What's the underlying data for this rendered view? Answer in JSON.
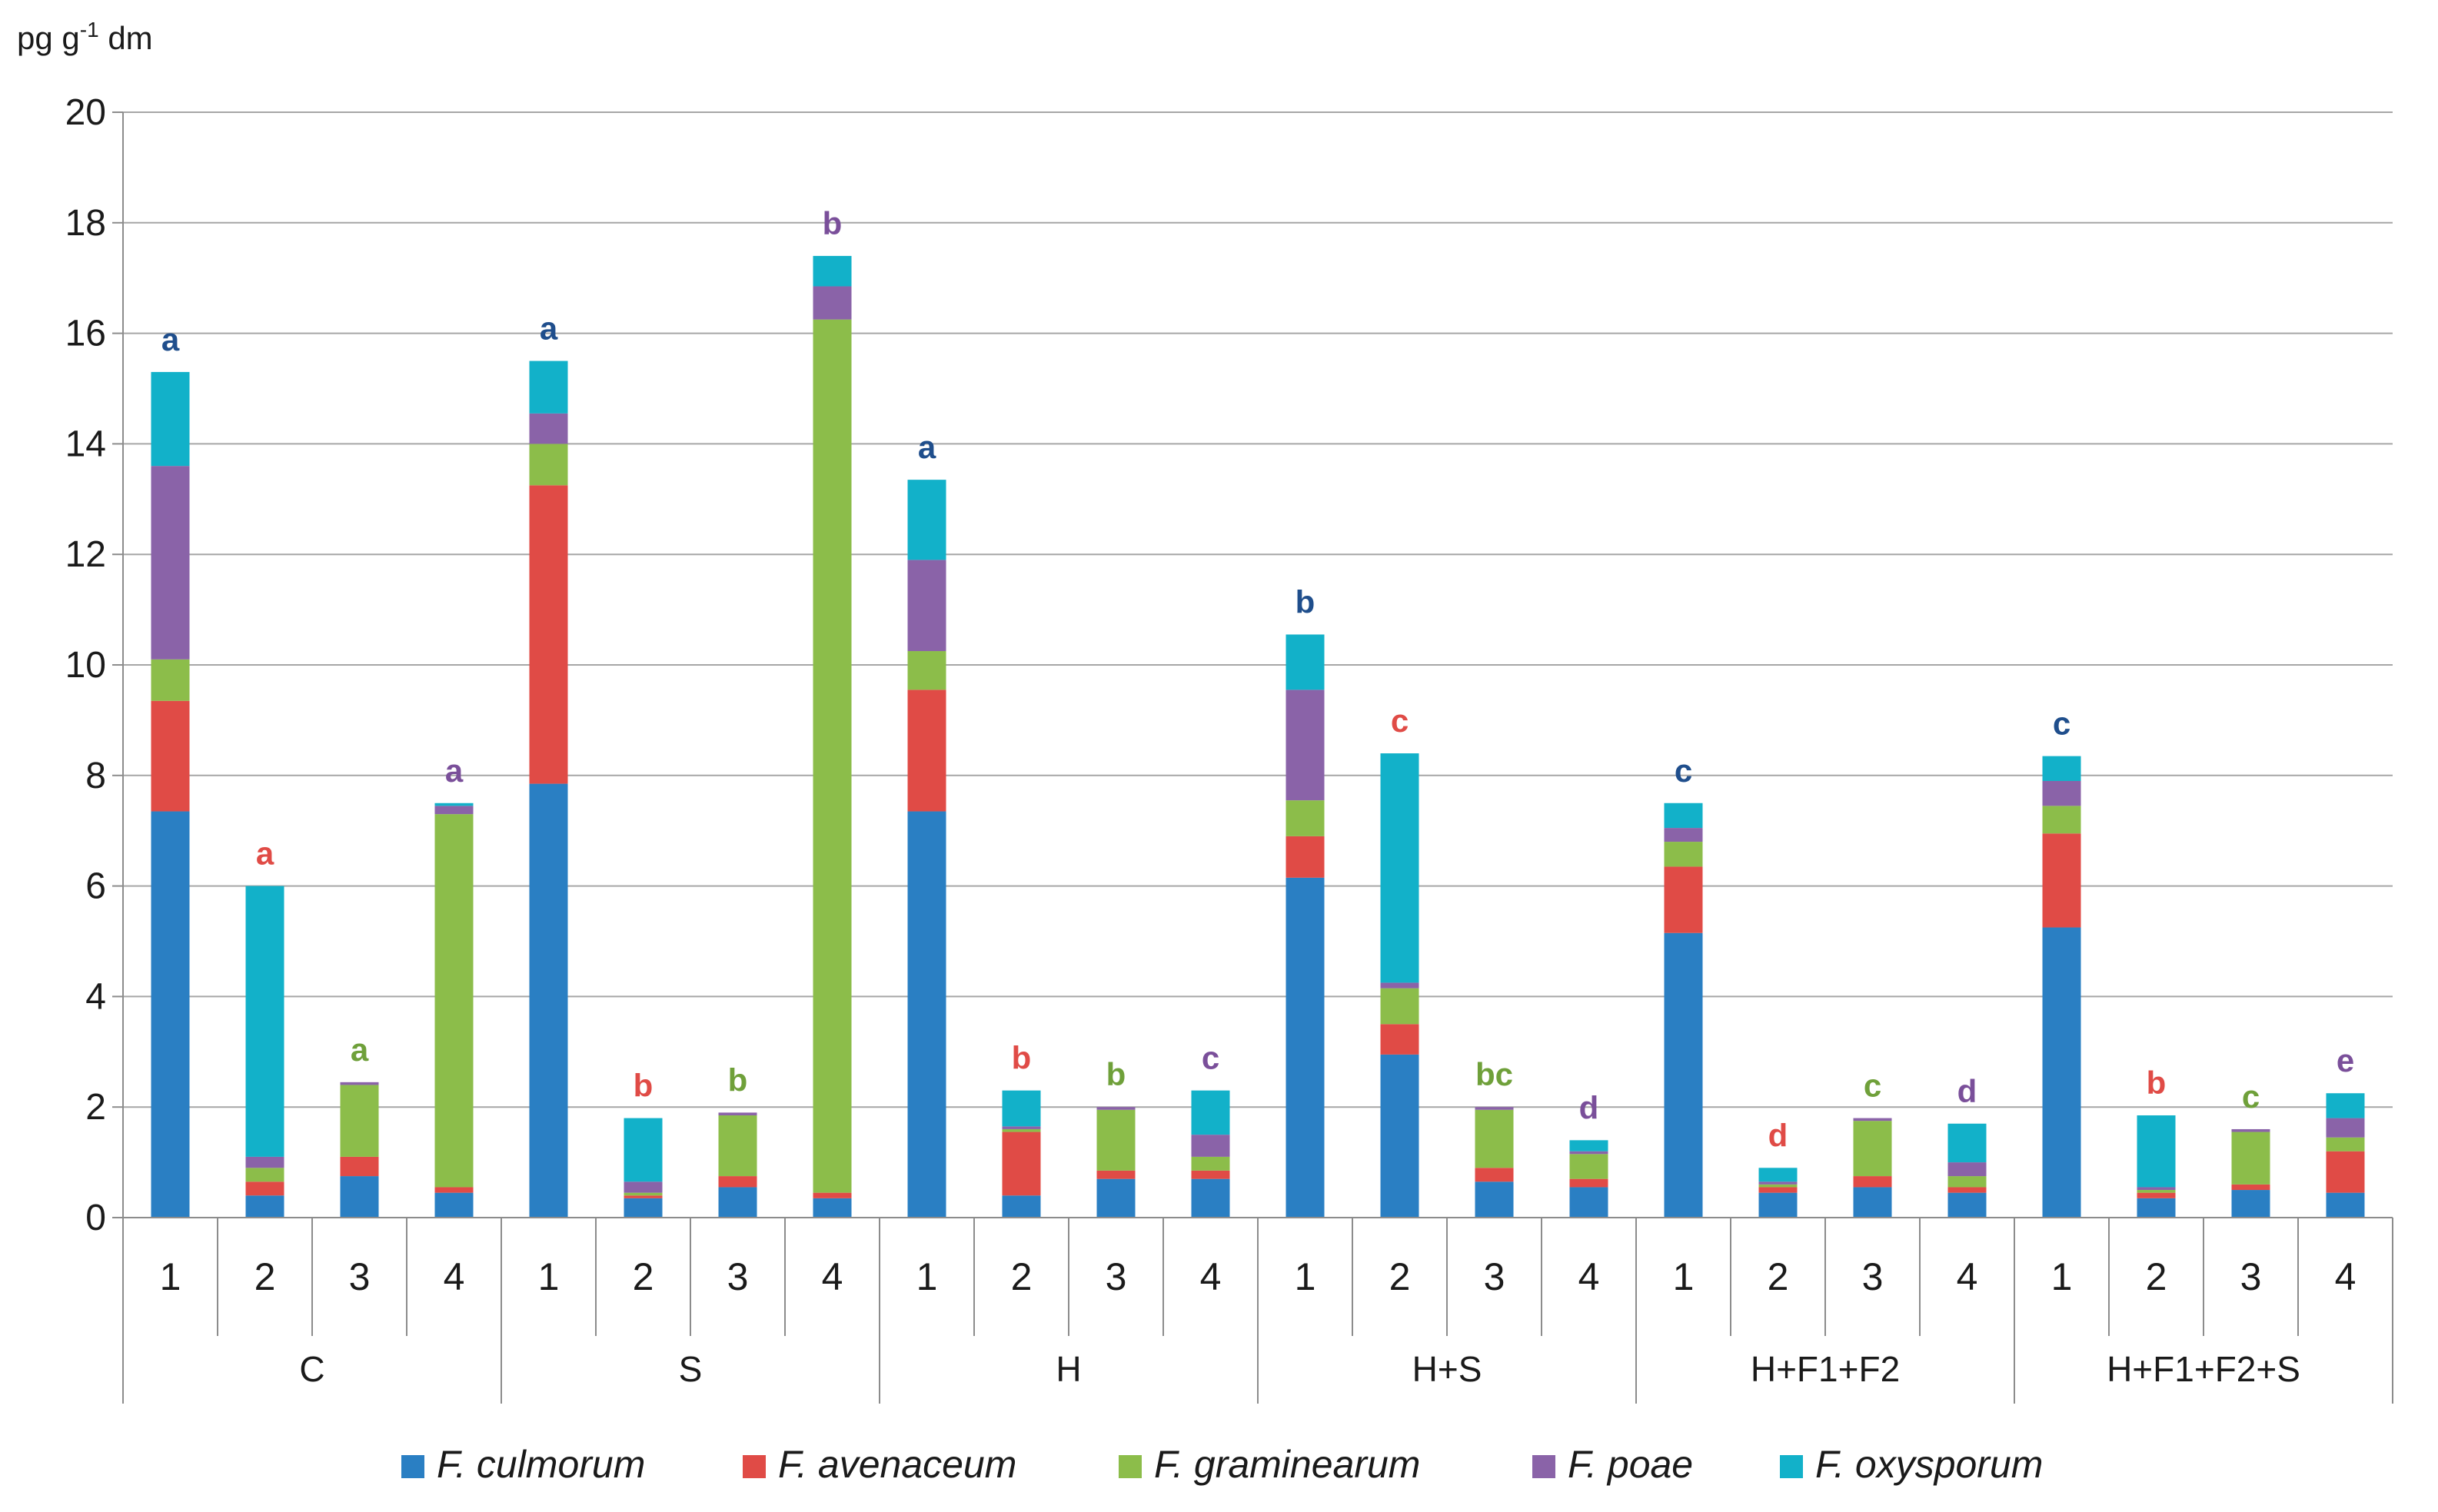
{
  "chart_data": {
    "type": "bar",
    "stacked": true,
    "ylabel": "pg g",
    "ylabel_sup": "-1",
    "ylabel_suffix": " dm",
    "ylim": [
      0,
      20
    ],
    "yticks": [
      "0",
      "2",
      "4",
      "6",
      "8",
      "10",
      "12",
      "14",
      "16",
      "18",
      "20"
    ],
    "grid": true,
    "legend_position": "bottom",
    "groups": [
      {
        "label": "C",
        "categories": [
          "1",
          "2",
          "3",
          "4"
        ]
      },
      {
        "label": "S",
        "categories": [
          "1",
          "2",
          "3",
          "4"
        ]
      },
      {
        "label": "H",
        "categories": [
          "1",
          "2",
          "3",
          "4"
        ]
      },
      {
        "label": "H+S",
        "categories": [
          "1",
          "2",
          "3",
          "4"
        ]
      },
      {
        "label": "H+F1+F2",
        "categories": [
          "1",
          "2",
          "3",
          "4"
        ]
      },
      {
        "label": "H+F1+F2+S",
        "categories": [
          "1",
          "2",
          "3",
          "4"
        ]
      }
    ],
    "series": [
      {
        "name": "F. culmorum",
        "color": "#2a7fc3",
        "values": [
          7.35,
          0.4,
          0.75,
          0.45,
          7.85,
          0.35,
          0.55,
          0.35,
          7.35,
          0.4,
          0.7,
          0.7,
          6.15,
          2.95,
          0.65,
          0.55,
          5.15,
          0.45,
          0.55,
          0.45,
          5.25,
          0.35,
          0.5,
          0.45
        ]
      },
      {
        "name": "F. avenaceum",
        "color": "#e04b46",
        "values": [
          2.0,
          0.25,
          0.35,
          0.1,
          5.4,
          0.05,
          0.2,
          0.1,
          2.2,
          1.15,
          0.15,
          0.15,
          0.75,
          0.55,
          0.25,
          0.15,
          1.2,
          0.1,
          0.2,
          0.1,
          1.7,
          0.1,
          0.1,
          0.75
        ]
      },
      {
        "name": "F. graminearum",
        "color": "#8cbd4a",
        "values": [
          0.75,
          0.25,
          1.3,
          6.75,
          0.75,
          0.05,
          1.1,
          15.8,
          0.7,
          0.05,
          1.1,
          0.25,
          0.65,
          0.65,
          1.05,
          0.45,
          0.45,
          0.05,
          1.0,
          0.2,
          0.5,
          0.05,
          0.95,
          0.25
        ]
      },
      {
        "name": "F. poae",
        "color": "#8a63a8",
        "values": [
          3.5,
          0.2,
          0.05,
          0.15,
          0.55,
          0.2,
          0.05,
          0.6,
          1.65,
          0.05,
          0.05,
          0.4,
          2.0,
          0.1,
          0.05,
          0.05,
          0.25,
          0.05,
          0.05,
          0.25,
          0.45,
          0.05,
          0.05,
          0.35
        ]
      },
      {
        "name": "F. oxysporum",
        "color": "#12b1c9",
        "values": [
          1.7,
          4.9,
          0.0,
          0.05,
          0.95,
          1.15,
          0.0,
          0.55,
          1.45,
          0.65,
          0.0,
          0.8,
          1.0,
          4.15,
          0.0,
          0.2,
          0.45,
          0.25,
          0.0,
          0.7,
          0.45,
          1.3,
          0.0,
          0.45
        ]
      }
    ],
    "annotations": [
      {
        "text": "a",
        "color": "#1f4e8c"
      },
      {
        "text": "a",
        "color": "#e04b46"
      },
      {
        "text": "a",
        "color": "#6fa03a"
      },
      {
        "text": "a",
        "color": "#7a4f9a"
      },
      {
        "text": "a",
        "color": "#1f4e8c"
      },
      {
        "text": "b",
        "color": "#e04b46"
      },
      {
        "text": "b",
        "color": "#6fa03a"
      },
      {
        "text": "b",
        "color": "#7a4f9a"
      },
      {
        "text": "a",
        "color": "#1f4e8c"
      },
      {
        "text": "b",
        "color": "#e04b46"
      },
      {
        "text": "b",
        "color": "#6fa03a"
      },
      {
        "text": "c",
        "color": "#7a4f9a"
      },
      {
        "text": "b",
        "color": "#1f4e8c"
      },
      {
        "text": "c",
        "color": "#e04b46"
      },
      {
        "text": "bc",
        "color": "#6fa03a"
      },
      {
        "text": "d",
        "color": "#7a4f9a"
      },
      {
        "text": "c",
        "color": "#1f4e8c"
      },
      {
        "text": "d",
        "color": "#e04b46"
      },
      {
        "text": "c",
        "color": "#6fa03a"
      },
      {
        "text": "d",
        "color": "#7a4f9a"
      },
      {
        "text": "c",
        "color": "#1f4e8c"
      },
      {
        "text": "b",
        "color": "#e04b46"
      },
      {
        "text": "c",
        "color": "#6fa03a"
      },
      {
        "text": "e",
        "color": "#7a4f9a"
      }
    ]
  }
}
